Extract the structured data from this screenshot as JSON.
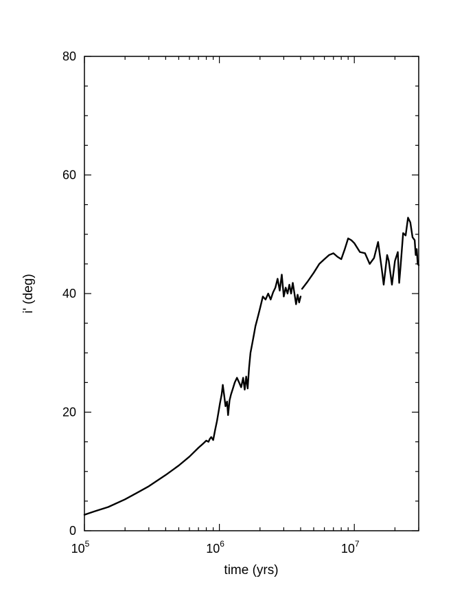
{
  "chart_data": {
    "type": "line",
    "xlabel": "time (yrs)",
    "ylabel": "i' (deg)",
    "xscale": "log",
    "xlim": [
      100000,
      30000000
    ],
    "ylim": [
      0,
      80
    ],
    "x_ticks": [
      {
        "value": 100000,
        "base": "10",
        "exp": "5"
      },
      {
        "value": 1000000,
        "base": "10",
        "exp": "6"
      },
      {
        "value": 10000000,
        "base": "10",
        "exp": "7"
      }
    ],
    "y_ticks": [
      {
        "value": 0,
        "label": "0"
      },
      {
        "value": 20,
        "label": "20"
      },
      {
        "value": 40,
        "label": "40"
      },
      {
        "value": 60,
        "label": "60"
      },
      {
        "value": 80,
        "label": "80"
      }
    ],
    "grid": false,
    "series": [
      {
        "x": [
          100000,
          120000,
          150000,
          200000,
          250000,
          300000,
          400000,
          500000,
          600000,
          700000,
          750000,
          800000,
          830000,
          850000,
          870000,
          900000,
          930000,
          960000,
          990000,
          1010000,
          1040000,
          1060000,
          1090000,
          1110000,
          1140000,
          1160000,
          1190000,
          1220000,
          1260000,
          1300000,
          1350000,
          1400000,
          1450000,
          1500000,
          1540000,
          1580000,
          1620000,
          1660000,
          1700000,
          1750000,
          1800000,
          1850000,
          1900000,
          1950000,
          2000000,
          2100000,
          2200000,
          2300000,
          2400000,
          2500000,
          2600000,
          2700000,
          2800000,
          2900000,
          3000000,
          3100000,
          3200000,
          3300000,
          3400000,
          3500000,
          3600000,
          3700000,
          3800000,
          3900000,
          4000000
        ],
        "y": [
          2.7,
          3.3,
          4.0,
          5.3,
          6.5,
          7.5,
          9.4,
          11.0,
          12.5,
          14.0,
          14.6,
          15.2,
          15.0,
          15.5,
          15.8,
          15.3,
          17.0,
          18.5,
          20.3,
          21.5,
          23.0,
          24.6,
          22.5,
          21.0,
          21.8,
          19.5,
          22.0,
          23.0,
          24.0,
          25.0,
          25.8,
          25.0,
          24.2,
          25.8,
          23.8,
          26.0,
          24.0,
          27.5,
          30.0,
          31.5,
          33.0,
          34.5,
          35.5,
          36.5,
          37.5,
          39.5,
          39.0,
          40.0,
          39.0,
          40.2,
          41.0,
          42.5,
          40.5,
          43.2,
          39.5,
          41.0,
          40.0,
          41.5,
          40.0,
          41.8,
          40.0,
          38.2,
          39.8,
          38.5,
          39.5
        ],
        "color": "#000000"
      },
      {
        "x": [
          4100000,
          4500000,
          5000000,
          5500000,
          6000000,
          6500000,
          7000000,
          7500000,
          8000000,
          8500000,
          9000000,
          9500000,
          10000000,
          11000000,
          12000000,
          13000000,
          14000000,
          15000000,
          16000000,
          16500000,
          17000000,
          17500000,
          18000000,
          19000000,
          20000000,
          21000000,
          21500000,
          22000000,
          23000000,
          24000000,
          25000000,
          26000000,
          27000000,
          28000000,
          28500000,
          29000000,
          29500000,
          30000000
        ],
        "y": [
          40.8,
          42.0,
          43.5,
          45.0,
          45.8,
          46.5,
          46.8,
          46.2,
          45.8,
          47.5,
          49.3,
          49.0,
          48.5,
          47.0,
          46.8,
          45.0,
          46.0,
          48.7,
          44.0,
          41.5,
          44.0,
          46.5,
          45.5,
          41.5,
          45.5,
          47.0,
          41.8,
          44.5,
          50.2,
          49.8,
          52.8,
          52.0,
          49.5,
          49.0,
          46.5,
          47.5,
          45.0,
          44.8
        ],
        "color": "#000000"
      }
    ]
  }
}
